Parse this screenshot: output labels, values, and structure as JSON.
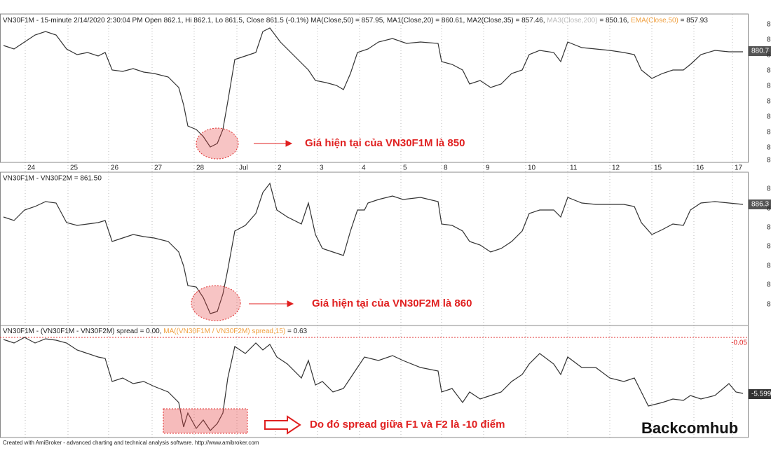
{
  "pane1": {
    "header": "VN30F1M - 15-minute 2/14/2020 2:30:04 PM Open 862.1, Hi 862.1, Lo 861.5, Close 861.5 (-0.1%) MA(Close,50) = 857.95, MA1(Close,20) = 860.61, MA2(Close,35) = 857.46,",
    "header_ma3": "MA3(Close,200)",
    "header_ma3_value": " = 850.16,",
    "header_ema": "EMA(Close,50)",
    "header_ema_value": " = 857.93",
    "price_label": "880.7",
    "annotation": "Giá hiện tại của VN30F1M là 850"
  },
  "axis_digit": "8",
  "x_labels": [
    "24",
    "25",
    "26",
    "27",
    "28",
    "Jul",
    "2",
    "3",
    "4",
    "5",
    "8",
    "9",
    "10",
    "11",
    "12",
    "15",
    "16",
    "17"
  ],
  "pane2": {
    "header": "VN30F1M - VN30F2M = 861.50",
    "price_label": "886.3",
    "annotation": "Giá hiện tại của VN30F2M là 860"
  },
  "pane3": {
    "header": "VN30F1M - (VN30F1M - VN30F2M) spread = 0.00,",
    "header_ma": "MA((VN30F1M / VN30F2M) spread,15)",
    "header_ma_value": " = 0.63",
    "top_label": "-0.05",
    "last_label": "-5.599",
    "annotation": "Do đó spread giữa F1 và F2 là -10 điểm"
  },
  "footer": "Created with AmiBroker - advanced charting and technical analysis software. http://www.amibroker.com",
  "logo": "Backcomhub"
}
